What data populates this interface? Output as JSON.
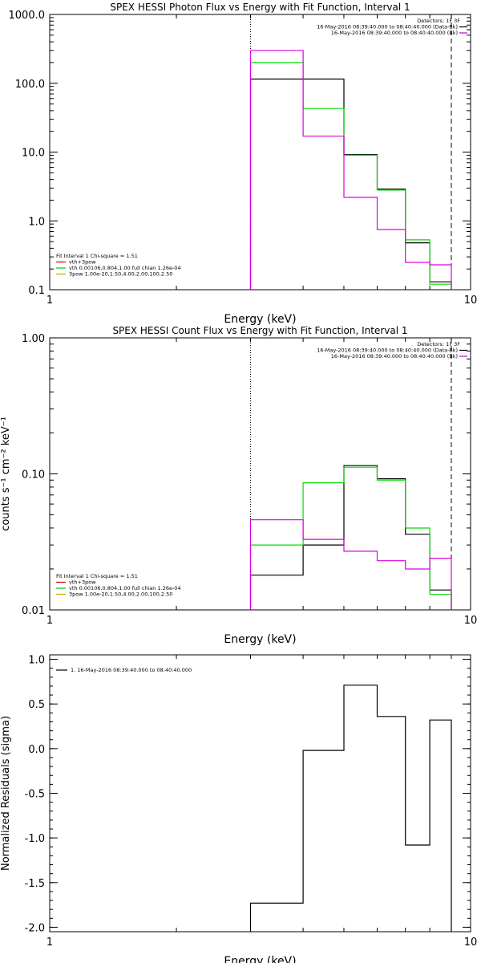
{
  "chart_data": [
    {
      "type": "line",
      "title": "SPEX HESSI Photon Flux vs Energy with Fit Function, Interval 1",
      "xlabel": "Energy (keV)",
      "ylabel": "",
      "xscale": "log",
      "yscale": "log",
      "xlim": [
        1,
        10
      ],
      "ylim": [
        0.1,
        1000
      ],
      "x_ticks": [
        {
          "v": 1,
          "label": "1"
        },
        {
          "v": 10,
          "label": "10"
        }
      ],
      "y_ticks": [
        {
          "v": 0.1,
          "label": "0.1"
        },
        {
          "v": 1,
          "label": "1.0"
        },
        {
          "v": 10,
          "label": "10.0"
        },
        {
          "v": 100,
          "label": "100.0"
        },
        {
          "v": 1000,
          "label": "1000.0"
        }
      ],
      "vlines": [
        {
          "x": 3,
          "style": "dotted"
        },
        {
          "x": 9,
          "style": "dashed"
        }
      ],
      "legend_title": "Detectors: 1F 3F",
      "legend": [
        {
          "text": "16-May-2016 08:39:40.000 to 08:40:40.000 (Data-Bk)",
          "color": "#000000"
        },
        {
          "text": "16-May-2016 08:39:40.000 to 08:40:40.000 (Bk)",
          "color": "#cc00cc"
        }
      ],
      "fit_header": "Fit Interval  1    Chi-square = 1.51",
      "fit_legend": [
        {
          "text": "vth+3pow",
          "color": "#cc0000"
        },
        {
          "text": "vth 0.00106,0.804,1.00  full chian 1.26e-04",
          "color": "#00cc00"
        },
        {
          "text": "3pow 1.00e-20,1.50,4.00,2.00,100,2.50",
          "color": "#ccaa00"
        }
      ],
      "edges": [
        3,
        4,
        5,
        6,
        7,
        8,
        9
      ],
      "series": [
        {
          "color": "#000000",
          "values": [
            115,
            115,
            9.2,
            2.9,
            0.48,
            0.13
          ]
        },
        {
          "color": "#00dd00",
          "values": [
            200,
            43,
            9.0,
            2.8,
            0.53,
            0.12
          ]
        },
        {
          "color": "#dd00dd",
          "values": [
            300,
            17,
            2.2,
            0.75,
            0.25,
            0.23
          ]
        }
      ]
    },
    {
      "type": "line",
      "title": "SPEX HESSI Count Flux vs Energy with Fit Function, Interval 1",
      "xlabel": "Energy (keV)",
      "ylabel": "counts s⁻¹ cm⁻² keV⁻¹",
      "xscale": "log",
      "yscale": "log",
      "xlim": [
        1,
        10
      ],
      "ylim": [
        0.01,
        1
      ],
      "x_ticks": [
        {
          "v": 1,
          "label": "1"
        },
        {
          "v": 10,
          "label": "10"
        }
      ],
      "y_ticks": [
        {
          "v": 0.01,
          "label": "0.01"
        },
        {
          "v": 0.1,
          "label": "0.10"
        },
        {
          "v": 1,
          "label": "1.00"
        }
      ],
      "vlines": [
        {
          "x": 3,
          "style": "dotted"
        },
        {
          "x": 9,
          "style": "dashed"
        }
      ],
      "legend_title": "Detectors: 1F 3F",
      "legend": [
        {
          "text": "16-May-2016 08:39:40.000 to 08:40:40.000 (Data-Bk)",
          "color": "#000000"
        },
        {
          "text": "16-May-2016 08:39:40.000 to 08:40:40.000 (Bk)",
          "color": "#cc00cc"
        }
      ],
      "fit_header": "Fit Interval  1    Chi-square = 1.51",
      "fit_legend": [
        {
          "text": "vth+3pow",
          "color": "#cc0000"
        },
        {
          "text": "vth 0.00106,0.804,1.00  full chian 1.26e-04",
          "color": "#00cc00"
        },
        {
          "text": "3pow 1.00e-20,1.50,4.00,2.00,100,2.50",
          "color": "#ccaa00"
        }
      ],
      "edges": [
        3,
        4,
        5,
        6,
        7,
        8,
        9
      ],
      "series": [
        {
          "color": "#000000",
          "values": [
            0.018,
            0.03,
            0.115,
            0.092,
            0.036,
            0.014
          ]
        },
        {
          "color": "#00dd00",
          "values": [
            0.03,
            0.086,
            0.112,
            0.09,
            0.04,
            0.013
          ]
        },
        {
          "color": "#dd00dd",
          "values": [
            0.046,
            0.033,
            0.027,
            0.023,
            0.02,
            0.024
          ]
        }
      ]
    },
    {
      "type": "line",
      "title": "",
      "xlabel": "Energy (keV)",
      "ylabel": "Normalized Residuals (sigma)",
      "xscale": "log",
      "yscale": "linear",
      "xlim": [
        1,
        10
      ],
      "ylim": [
        -2.05,
        1.05
      ],
      "x_ticks": [
        {
          "v": 1,
          "label": "1"
        },
        {
          "v": 10,
          "label": "10"
        }
      ],
      "y_ticks": [
        {
          "v": -2,
          "label": "-2.0"
        },
        {
          "v": -1.5,
          "label": "-1.5"
        },
        {
          "v": -1,
          "label": "-1.0"
        },
        {
          "v": -0.5,
          "label": "-0.5"
        },
        {
          "v": 0,
          "label": "0.0"
        },
        {
          "v": 0.5,
          "label": "0.5"
        },
        {
          "v": 1,
          "label": "1.0"
        }
      ],
      "vlines": [],
      "legend_title": "",
      "legend": [
        {
          "text": "1. 16-May-2016 08:39:40.000 to 08:40:40.000",
          "color": "#000000"
        }
      ],
      "fit_header": "",
      "fit_legend": [],
      "edges": [
        3,
        4,
        5,
        6,
        7,
        8,
        9
      ],
      "series": [
        {
          "color": "#000000",
          "values": [
            -1.73,
            -0.02,
            0.71,
            0.36,
            -1.08,
            0.32
          ]
        }
      ]
    }
  ]
}
